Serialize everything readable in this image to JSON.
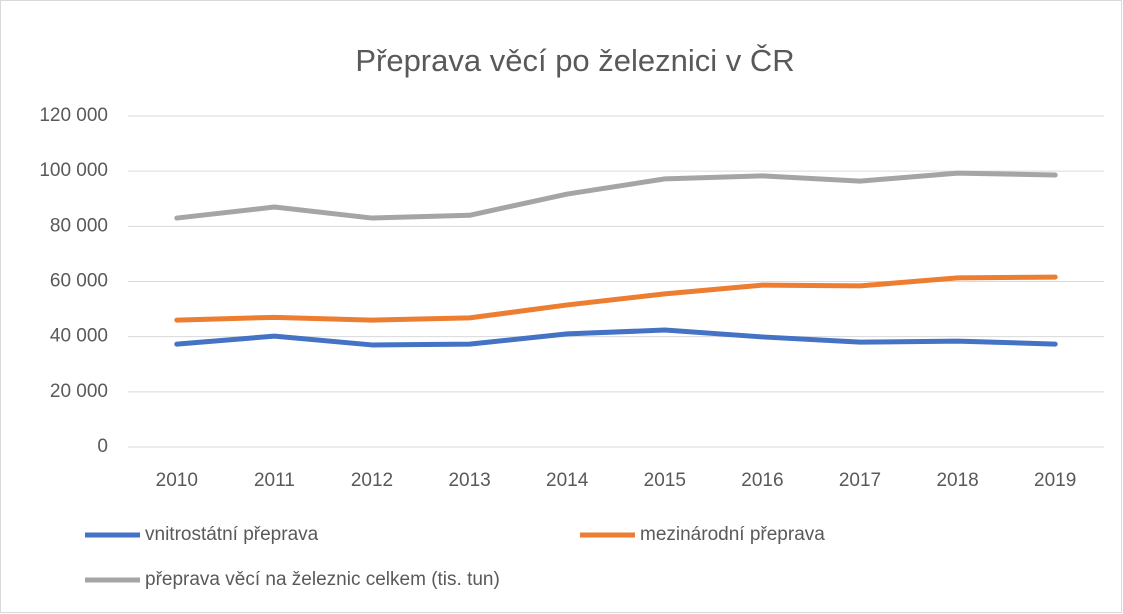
{
  "chart_data": {
    "type": "line",
    "title": "Přeprava věcí po železnici v ČR",
    "categories": [
      "2010",
      "2011",
      "2012",
      "2013",
      "2014",
      "2015",
      "2016",
      "2017",
      "2018",
      "2019"
    ],
    "series": [
      {
        "name": "vnitrostátní přeprava",
        "color": "#4472c4",
        "values": [
          37300,
          40200,
          37000,
          37300,
          41000,
          42400,
          39900,
          38000,
          38400,
          37300
        ]
      },
      {
        "name": "mezinárodní přeprava",
        "color": "#ed7d31",
        "values": [
          46000,
          47000,
          46000,
          46800,
          51500,
          55500,
          58700,
          58400,
          61300,
          61600
        ]
      },
      {
        "name": "přeprava věcí na železnic celkem (tis. tun)",
        "color": "#a5a5a5",
        "values": [
          83000,
          87000,
          83000,
          84000,
          91700,
          97200,
          98300,
          96400,
          99300,
          98600
        ]
      }
    ],
    "ylim": [
      0,
      120000
    ],
    "yticks": [
      0,
      {
        "value": 20000,
        "label": "20 000"
      },
      {
        "value": 40000,
        "label": "40 000"
      },
      {
        "value": 60000,
        "label": "60 000"
      },
      {
        "value": 80000,
        "label": "80 000"
      },
      {
        "value": 100000,
        "label": "100 000"
      },
      {
        "value": 120000,
        "label": "120 000"
      }
    ],
    "grid": true
  }
}
